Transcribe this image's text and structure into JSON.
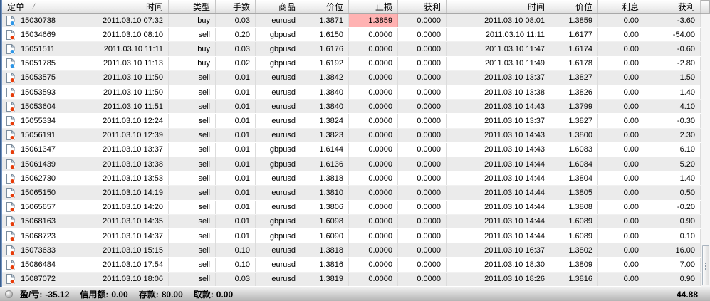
{
  "table": {
    "sort_indicator": "/",
    "columns": [
      {
        "key": "order",
        "label": "定单",
        "align": "left"
      },
      {
        "key": "open_time",
        "label": "时间",
        "align": "right"
      },
      {
        "key": "type",
        "label": "类型",
        "align": "right"
      },
      {
        "key": "lots",
        "label": "手数",
        "align": "right"
      },
      {
        "key": "symbol",
        "label": "商品",
        "align": "right"
      },
      {
        "key": "open_price",
        "label": "价位",
        "align": "right"
      },
      {
        "key": "sl",
        "label": "止损",
        "align": "right"
      },
      {
        "key": "tp",
        "label": "获利",
        "align": "right"
      },
      {
        "key": "close_time",
        "label": "时间",
        "align": "right"
      },
      {
        "key": "close_price",
        "label": "价位",
        "align": "right"
      },
      {
        "key": "swap",
        "label": "利息",
        "align": "right"
      },
      {
        "key": "profit",
        "label": "获利",
        "align": "right"
      }
    ],
    "rows": [
      {
        "order": "15030738",
        "open_time": "2011.03.10 07:32",
        "type": "buy",
        "lots": "0.03",
        "symbol": "eurusd",
        "open_price": "1.3871",
        "sl": "1.3859",
        "tp": "0.0000",
        "close_time": "2011.03.10 08:01",
        "close_price": "1.3859",
        "swap": "0.00",
        "profit": "-3.60",
        "sl_hit": true
      },
      {
        "order": "15034669",
        "open_time": "2011.03.10 08:10",
        "type": "sell",
        "lots": "0.20",
        "symbol": "gbpusd",
        "open_price": "1.6150",
        "sl": "0.0000",
        "tp": "0.0000",
        "close_time": "2011.03.10 11:11",
        "close_price": "1.6177",
        "swap": "0.00",
        "profit": "-54.00"
      },
      {
        "order": "15051511",
        "open_time": "2011.03.10 11:11",
        "type": "buy",
        "lots": "0.03",
        "symbol": "gbpusd",
        "open_price": "1.6176",
        "sl": "0.0000",
        "tp": "0.0000",
        "close_time": "2011.03.10 11:47",
        "close_price": "1.6174",
        "swap": "0.00",
        "profit": "-0.60"
      },
      {
        "order": "15051785",
        "open_time": "2011.03.10 11:13",
        "type": "buy",
        "lots": "0.02",
        "symbol": "gbpusd",
        "open_price": "1.6192",
        "sl": "0.0000",
        "tp": "0.0000",
        "close_time": "2011.03.10 11:49",
        "close_price": "1.6178",
        "swap": "0.00",
        "profit": "-2.80"
      },
      {
        "order": "15053575",
        "open_time": "2011.03.10 11:50",
        "type": "sell",
        "lots": "0.01",
        "symbol": "eurusd",
        "open_price": "1.3842",
        "sl": "0.0000",
        "tp": "0.0000",
        "close_time": "2011.03.10 13:37",
        "close_price": "1.3827",
        "swap": "0.00",
        "profit": "1.50"
      },
      {
        "order": "15053593",
        "open_time": "2011.03.10 11:50",
        "type": "sell",
        "lots": "0.01",
        "symbol": "eurusd",
        "open_price": "1.3840",
        "sl": "0.0000",
        "tp": "0.0000",
        "close_time": "2011.03.10 13:38",
        "close_price": "1.3826",
        "swap": "0.00",
        "profit": "1.40"
      },
      {
        "order": "15053604",
        "open_time": "2011.03.10 11:51",
        "type": "sell",
        "lots": "0.01",
        "symbol": "eurusd",
        "open_price": "1.3840",
        "sl": "0.0000",
        "tp": "0.0000",
        "close_time": "2011.03.10 14:43",
        "close_price": "1.3799",
        "swap": "0.00",
        "profit": "4.10"
      },
      {
        "order": "15055334",
        "open_time": "2011.03.10 12:24",
        "type": "sell",
        "lots": "0.01",
        "symbol": "eurusd",
        "open_price": "1.3824",
        "sl": "0.0000",
        "tp": "0.0000",
        "close_time": "2011.03.10 13:37",
        "close_price": "1.3827",
        "swap": "0.00",
        "profit": "-0.30"
      },
      {
        "order": "15056191",
        "open_time": "2011.03.10 12:39",
        "type": "sell",
        "lots": "0.01",
        "symbol": "eurusd",
        "open_price": "1.3823",
        "sl": "0.0000",
        "tp": "0.0000",
        "close_time": "2011.03.10 14:43",
        "close_price": "1.3800",
        "swap": "0.00",
        "profit": "2.30"
      },
      {
        "order": "15061347",
        "open_time": "2011.03.10 13:37",
        "type": "sell",
        "lots": "0.01",
        "symbol": "gbpusd",
        "open_price": "1.6144",
        "sl": "0.0000",
        "tp": "0.0000",
        "close_time": "2011.03.10 14:43",
        "close_price": "1.6083",
        "swap": "0.00",
        "profit": "6.10"
      },
      {
        "order": "15061439",
        "open_time": "2011.03.10 13:38",
        "type": "sell",
        "lots": "0.01",
        "symbol": "gbpusd",
        "open_price": "1.6136",
        "sl": "0.0000",
        "tp": "0.0000",
        "close_time": "2011.03.10 14:44",
        "close_price": "1.6084",
        "swap": "0.00",
        "profit": "5.20"
      },
      {
        "order": "15062730",
        "open_time": "2011.03.10 13:53",
        "type": "sell",
        "lots": "0.01",
        "symbol": "eurusd",
        "open_price": "1.3818",
        "sl": "0.0000",
        "tp": "0.0000",
        "close_time": "2011.03.10 14:44",
        "close_price": "1.3804",
        "swap": "0.00",
        "profit": "1.40"
      },
      {
        "order": "15065150",
        "open_time": "2011.03.10 14:19",
        "type": "sell",
        "lots": "0.01",
        "symbol": "eurusd",
        "open_price": "1.3810",
        "sl": "0.0000",
        "tp": "0.0000",
        "close_time": "2011.03.10 14:44",
        "close_price": "1.3805",
        "swap": "0.00",
        "profit": "0.50"
      },
      {
        "order": "15065657",
        "open_time": "2011.03.10 14:20",
        "type": "sell",
        "lots": "0.01",
        "symbol": "eurusd",
        "open_price": "1.3806",
        "sl": "0.0000",
        "tp": "0.0000",
        "close_time": "2011.03.10 14:44",
        "close_price": "1.3808",
        "swap": "0.00",
        "profit": "-0.20"
      },
      {
        "order": "15068163",
        "open_time": "2011.03.10 14:35",
        "type": "sell",
        "lots": "0.01",
        "symbol": "gbpusd",
        "open_price": "1.6098",
        "sl": "0.0000",
        "tp": "0.0000",
        "close_time": "2011.03.10 14:44",
        "close_price": "1.6089",
        "swap": "0.00",
        "profit": "0.90"
      },
      {
        "order": "15068723",
        "open_time": "2011.03.10 14:37",
        "type": "sell",
        "lots": "0.01",
        "symbol": "gbpusd",
        "open_price": "1.6090",
        "sl": "0.0000",
        "tp": "0.0000",
        "close_time": "2011.03.10 14:44",
        "close_price": "1.6089",
        "swap": "0.00",
        "profit": "0.10"
      },
      {
        "order": "15073633",
        "open_time": "2011.03.10 15:15",
        "type": "sell",
        "lots": "0.10",
        "symbol": "eurusd",
        "open_price": "1.3818",
        "sl": "0.0000",
        "tp": "0.0000",
        "close_time": "2011.03.10 16:37",
        "close_price": "1.3802",
        "swap": "0.00",
        "profit": "16.00"
      },
      {
        "order": "15086484",
        "open_time": "2011.03.10 17:54",
        "type": "sell",
        "lots": "0.10",
        "symbol": "eurusd",
        "open_price": "1.3816",
        "sl": "0.0000",
        "tp": "0.0000",
        "close_time": "2011.03.10 18:30",
        "close_price": "1.3809",
        "swap": "0.00",
        "profit": "7.00"
      },
      {
        "order": "15087072",
        "open_time": "2011.03.10 18:06",
        "type": "sell",
        "lots": "0.03",
        "symbol": "eurusd",
        "open_price": "1.3819",
        "sl": "0.0000",
        "tp": "0.0000",
        "close_time": "2011.03.10 18:26",
        "close_price": "1.3816",
        "swap": "0.00",
        "profit": "0.90"
      }
    ]
  },
  "status_bar": {
    "profit_loss_label": "盈/亏:",
    "profit_loss_value": "-35.12",
    "credit_label": "信用额:",
    "credit_value": "0.00",
    "deposit_label": "存款:",
    "deposit_value": "80.00",
    "withdrawal_label": "取款:",
    "withdrawal_value": "0.00",
    "total": "44.88"
  },
  "colors": {
    "buy_icon": "#2e96e6",
    "sell_icon": "#e63c0a",
    "sl_highlight": "#ffb2b2",
    "window_strip": "#2f5382"
  }
}
